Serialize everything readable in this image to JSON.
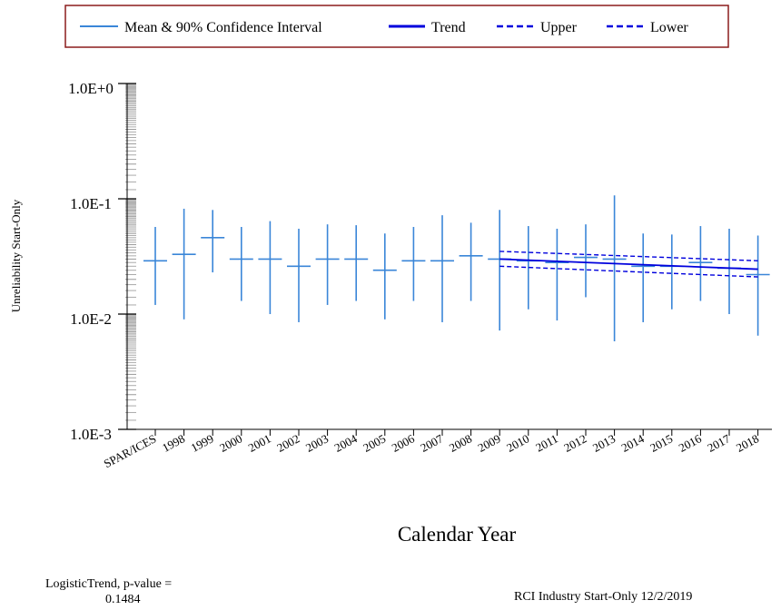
{
  "chart_data": {
    "type": "scatter",
    "y_scale": "log",
    "ylim": [
      0.001,
      1.0
    ],
    "yticks": [
      "1.0E+0",
      "1.0E-1",
      "1.0E-2",
      "1.0E-3"
    ],
    "xlabel": "Calendar Year",
    "ylabel": "Unreliability Start-Only",
    "categories": [
      "SPAR/ICES",
      "1998",
      "1999",
      "2000",
      "2001",
      "2002",
      "2003",
      "2004",
      "2005",
      "2006",
      "2007",
      "2008",
      "2009",
      "2010",
      "2011",
      "2012",
      "2013",
      "2014",
      "2015",
      "2016",
      "2017",
      "2018"
    ],
    "series": [
      {
        "name": "Mean & 90% Confidence Interval",
        "color": "#3a86d8",
        "mean": [
          0.029,
          0.033,
          0.046,
          0.03,
          0.03,
          0.026,
          0.03,
          0.03,
          0.024,
          0.029,
          0.029,
          0.032,
          0.03,
          0.029,
          0.028,
          0.031,
          0.03,
          0.026,
          0.026,
          0.028,
          0.025,
          0.022
        ],
        "upper": [
          0.057,
          0.082,
          0.08,
          0.057,
          0.064,
          0.055,
          0.06,
          0.059,
          0.05,
          0.057,
          0.072,
          0.062,
          0.08,
          0.058,
          0.055,
          0.06,
          0.107,
          0.05,
          0.049,
          0.058,
          0.055,
          0.048
        ],
        "lower": [
          0.012,
          0.009,
          0.023,
          0.013,
          0.01,
          0.0085,
          0.012,
          0.013,
          0.009,
          0.013,
          0.0085,
          0.013,
          0.0072,
          0.011,
          0.0088,
          0.014,
          0.0058,
          0.0085,
          0.011,
          0.013,
          0.01,
          0.0065
        ]
      },
      {
        "name": "Trend",
        "color": "#0000dd",
        "x_range": [
          "2009",
          "2018"
        ],
        "values": [
          0.03,
          0.0245
        ]
      },
      {
        "name": "Upper",
        "color": "#0000dd",
        "x_range": [
          "2009",
          "2018"
        ],
        "values": [
          0.035,
          0.029
        ]
      },
      {
        "name": "Lower",
        "color": "#0000dd",
        "x_range": [
          "2009",
          "2018"
        ],
        "values": [
          0.026,
          0.021
        ]
      }
    ],
    "legend_position": "top",
    "grid": false
  },
  "footer": {
    "trend_label": "LogisticTrend, p-value =",
    "p_value": "0.1484",
    "source": "RCI Industry Start-Only 12/2/2019"
  }
}
